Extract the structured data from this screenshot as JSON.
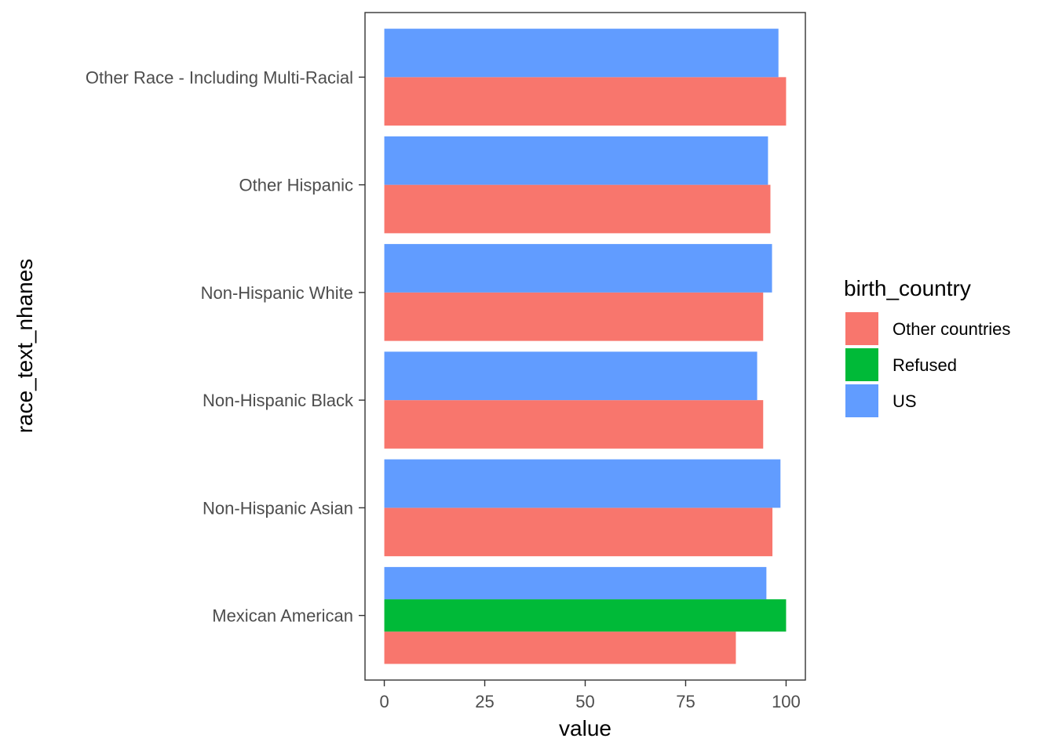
{
  "chart_data": {
    "type": "bar",
    "orientation": "horizontal",
    "title": "",
    "xlabel": "value",
    "ylabel": "race_text_nhanes",
    "xlim": [
      -4.8,
      104.8
    ],
    "xticks": [
      0,
      25,
      50,
      75,
      100
    ],
    "grid": false,
    "legend_position": "right",
    "categories": [
      "Mexican American",
      "Non-Hispanic Asian",
      "Non-Hispanic Black",
      "Non-Hispanic White",
      "Other Hispanic",
      "Other Race - Including Multi-Racial"
    ],
    "legend": {
      "title": "birth_country",
      "entries": [
        {
          "name": "Other countries",
          "color": "#F8766D"
        },
        {
          "name": "Refused",
          "color": "#00BA38"
        },
        {
          "name": "US",
          "color": "#619CFF"
        }
      ]
    },
    "series": [
      {
        "name": "Other countries",
        "color": "#F8766D",
        "values": [
          87.5,
          96.6,
          94.3,
          94.3,
          96.1,
          100
        ]
      },
      {
        "name": "Refused",
        "color": "#00BA38",
        "values": [
          100,
          null,
          null,
          null,
          null,
          null
        ]
      },
      {
        "name": "US",
        "color": "#619CFF",
        "values": [
          95.1,
          98.6,
          92.8,
          96.5,
          95.5,
          98.1
        ]
      }
    ]
  }
}
